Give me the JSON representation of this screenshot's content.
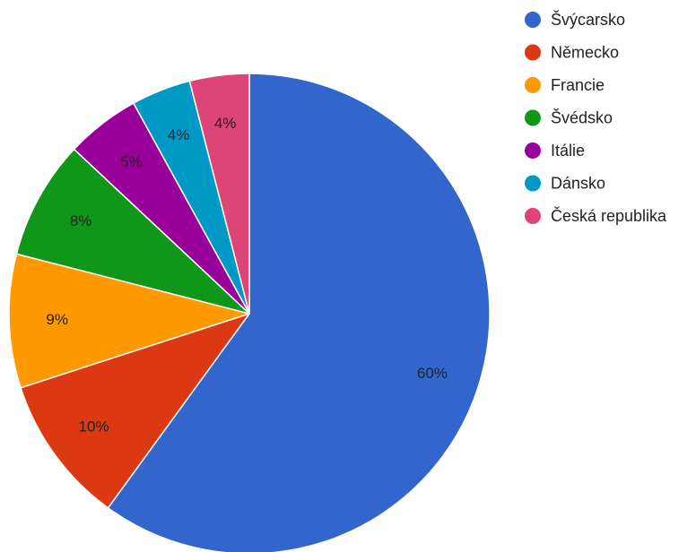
{
  "chart_data": {
    "type": "pie",
    "title": "",
    "legend_position": "right",
    "start_angle_deg": 0,
    "direction": "clockwise",
    "slices": [
      {
        "label": "Švýcarsko",
        "value": 60,
        "display": "60%",
        "color": "#3366cc"
      },
      {
        "label": "Německo",
        "value": 10,
        "display": "10%",
        "color": "#dc3912"
      },
      {
        "label": "Francie",
        "value": 9,
        "display": "9%",
        "color": "#ff9900"
      },
      {
        "label": "Švédsko",
        "value": 8,
        "display": "8%",
        "color": "#109618"
      },
      {
        "label": "Itálie",
        "value": 5,
        "display": "5%",
        "color": "#990099"
      },
      {
        "label": "Dánsko",
        "value": 4,
        "display": "4%",
        "color": "#0099c6"
      },
      {
        "label": "Česká republika",
        "value": 4,
        "display": "4%",
        "color": "#dd4477"
      }
    ]
  }
}
